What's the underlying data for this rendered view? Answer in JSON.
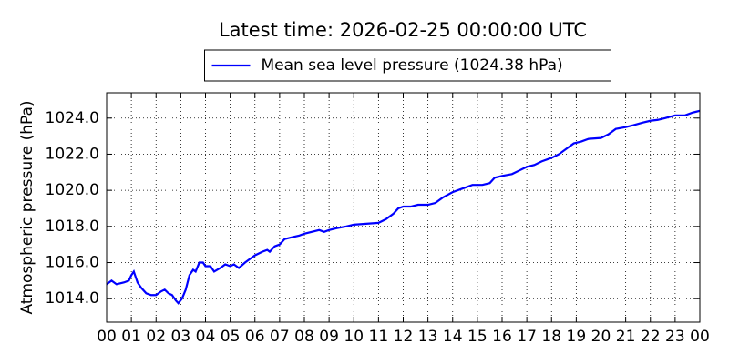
{
  "chart_data": {
    "type": "line",
    "title": "Latest time: 2026-02-25 00:00:00 UTC",
    "ylabel": "Atmospheric pressure (hPa)",
    "x": [
      0,
      0.2,
      0.4,
      0.7,
      0.9,
      1.0,
      1.1,
      1.25,
      1.4,
      1.6,
      1.8,
      2.0,
      2.2,
      2.35,
      2.5,
      2.65,
      2.8,
      2.9,
      3.05,
      3.2,
      3.35,
      3.5,
      3.6,
      3.75,
      3.9,
      4.0,
      4.2,
      4.35,
      4.6,
      4.8,
      5.0,
      5.15,
      5.35,
      5.6,
      5.8,
      6.0,
      6.3,
      6.5,
      6.6,
      6.8,
      7.0,
      7.2,
      7.5,
      7.8,
      8.0,
      8.3,
      8.6,
      8.8,
      9.0,
      9.3,
      9.7,
      10.0,
      10.5,
      11.0,
      11.3,
      11.6,
      11.8,
      12.0,
      12.3,
      12.6,
      13.0,
      13.3,
      13.6,
      14.0,
      14.4,
      14.8,
      15.2,
      15.5,
      15.7,
      16.0,
      16.4,
      16.7,
      17.0,
      17.3,
      17.6,
      18.0,
      18.3,
      18.6,
      18.9,
      19.2,
      19.5,
      20.0,
      20.3,
      20.6,
      21.0,
      21.3,
      21.7,
      22.0,
      22.3,
      22.6,
      23.0,
      23.4,
      23.7,
      24.0
    ],
    "series": [
      {
        "name": "Mean sea level pressure (1024.38 hPa)",
        "color": "#0000ff",
        "values": [
          1014.8,
          1015.0,
          1014.8,
          1014.9,
          1015.0,
          1015.3,
          1015.5,
          1014.9,
          1014.6,
          1014.3,
          1014.2,
          1014.2,
          1014.4,
          1014.5,
          1014.3,
          1014.2,
          1013.9,
          1013.75,
          1014.0,
          1014.5,
          1015.3,
          1015.6,
          1015.5,
          1016.0,
          1016.0,
          1015.8,
          1015.8,
          1015.5,
          1015.7,
          1015.9,
          1015.8,
          1015.9,
          1015.7,
          1016.0,
          1016.2,
          1016.4,
          1016.6,
          1016.7,
          1016.6,
          1016.9,
          1017.0,
          1017.3,
          1017.4,
          1017.5,
          1017.6,
          1017.7,
          1017.8,
          1017.7,
          1017.8,
          1017.9,
          1018.0,
          1018.1,
          1018.15,
          1018.2,
          1018.4,
          1018.7,
          1019.0,
          1019.1,
          1019.1,
          1019.2,
          1019.2,
          1019.3,
          1019.6,
          1019.9,
          1020.1,
          1020.3,
          1020.3,
          1020.4,
          1020.7,
          1020.8,
          1020.9,
          1021.1,
          1021.3,
          1021.4,
          1021.6,
          1021.8,
          1022.0,
          1022.3,
          1022.6,
          1022.7,
          1022.85,
          1022.9,
          1023.1,
          1023.4,
          1023.5,
          1023.6,
          1023.75,
          1023.85,
          1023.9,
          1024.0,
          1024.15,
          1024.15,
          1024.3,
          1024.4
        ]
      }
    ],
    "xlim": [
      0,
      24
    ],
    "xticks": [
      {
        "value": 0,
        "label": "00"
      },
      {
        "value": 1,
        "label": "01"
      },
      {
        "value": 2,
        "label": "02"
      },
      {
        "value": 3,
        "label": "03"
      },
      {
        "value": 4,
        "label": "04"
      },
      {
        "value": 5,
        "label": "05"
      },
      {
        "value": 6,
        "label": "06"
      },
      {
        "value": 7,
        "label": "07"
      },
      {
        "value": 8,
        "label": "08"
      },
      {
        "value": 9,
        "label": "09"
      },
      {
        "value": 10,
        "label": "10"
      },
      {
        "value": 11,
        "label": "11"
      },
      {
        "value": 12,
        "label": "12"
      },
      {
        "value": 13,
        "label": "13"
      },
      {
        "value": 14,
        "label": "14"
      },
      {
        "value": 15,
        "label": "15"
      },
      {
        "value": 16,
        "label": "16"
      },
      {
        "value": 17,
        "label": "17"
      },
      {
        "value": 18,
        "label": "18"
      },
      {
        "value": 19,
        "label": "19"
      },
      {
        "value": 20,
        "label": "20"
      },
      {
        "value": 21,
        "label": "21"
      },
      {
        "value": 22,
        "label": "22"
      },
      {
        "value": 23,
        "label": "23"
      },
      {
        "value": 24,
        "label": "00"
      }
    ],
    "ylim": [
      1012.7,
      1025.4
    ],
    "yticks": [
      {
        "value": 1014,
        "label": "1014.0"
      },
      {
        "value": 1016,
        "label": "1016.0"
      },
      {
        "value": 1018,
        "label": "1018.0"
      },
      {
        "value": 1020,
        "label": "1020.0"
      },
      {
        "value": 1022,
        "label": "1022.0"
      },
      {
        "value": 1024,
        "label": "1024.0"
      }
    ],
    "grid": true,
    "legend_loc": "upper center"
  }
}
